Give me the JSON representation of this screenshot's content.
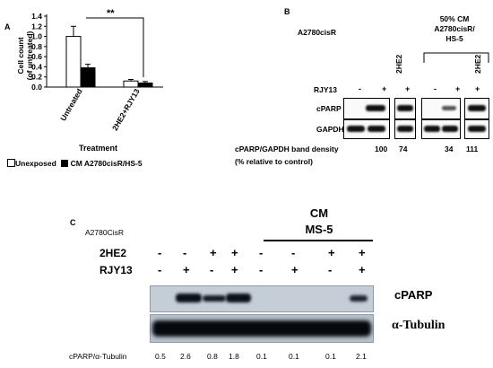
{
  "panel_a": {
    "letter": "A",
    "chart_data": {
      "type": "bar",
      "categories": [
        "Untreated",
        "2HE2+RJY13"
      ],
      "series": [
        {
          "name": "Unexposed",
          "values": [
            1.0,
            0.12
          ],
          "errors": [
            0.2,
            0.03
          ],
          "color": "#ffffff"
        },
        {
          "name": "CM A2780cisR/HS-5",
          "values": [
            0.38,
            0.08
          ],
          "errors": [
            0.07,
            0.03
          ],
          "color": "#000000"
        }
      ],
      "ylabel": "Cell count\n(of untreated)",
      "xlabel": "Treatment",
      "ylim": [
        0,
        1.4
      ],
      "yticks": [
        0.0,
        0.2,
        0.4,
        0.6,
        0.8,
        1.0,
        1.2,
        1.4
      ],
      "significance": "**",
      "legend_placement": "bottom"
    },
    "ylabel_line1": "Cell count",
    "ylabel_line2": "(of untreated)",
    "legend": {
      "unexposed": "Unexposed",
      "cm": "CM A2780cisR/HS-5"
    }
  },
  "panel_b": {
    "letter": "B",
    "cell_line": "A2780cisR",
    "cm_header": [
      "50% CM",
      "A2780cisR/",
      "HS-5"
    ],
    "lane_label_2he2": "2HE2",
    "rjy13_label": "RJY13",
    "rjy13_signs": [
      "-",
      "+",
      "+",
      "-",
      "+",
      "+"
    ],
    "bands": [
      "cPARP",
      "GAPDH"
    ],
    "density_label_1": "cPARP/GAPDH band density",
    "density_label_2": "(% relative to control)",
    "density_values": [
      "100",
      "74",
      "34",
      "111"
    ]
  },
  "panel_c": {
    "letter": "C",
    "cell_line": "A2780CisR",
    "cm_header": [
      "CM",
      "MS-5"
    ],
    "row_2he2_label": "2HE2",
    "row_2he2": [
      "-",
      "-",
      "+",
      "+",
      "-",
      "-",
      "+",
      "+"
    ],
    "row_rjy13_label": "RJY13",
    "row_rjy13": [
      "-",
      "+",
      "-",
      "+",
      "-",
      "+",
      "-",
      "+"
    ],
    "bands": [
      "cPARP",
      "α-Tubulin"
    ],
    "ratio_label": "cPARP/α-Tubulin",
    "ratio_values": [
      "0.5",
      "2.6",
      "0.8",
      "1.8",
      "0.1",
      "0.1",
      "0.1",
      "2.1"
    ]
  }
}
